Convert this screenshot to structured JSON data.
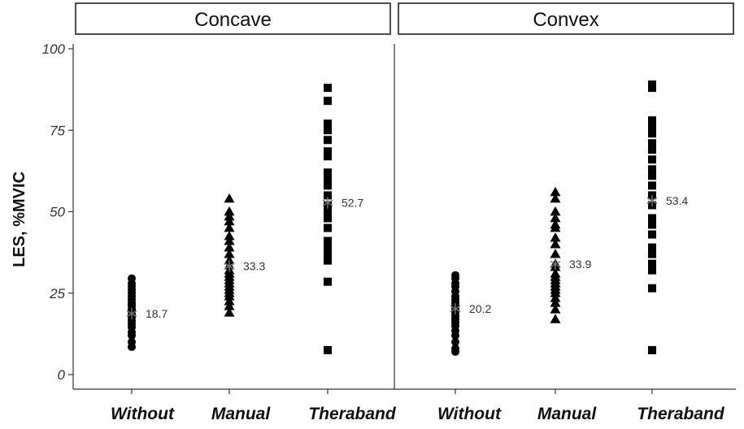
{
  "chart_data": {
    "type": "scatter",
    "ylabel": "LES, %MVIC",
    "ylim": [
      0,
      100
    ],
    "yticks": [
      0,
      25,
      50,
      75,
      100
    ],
    "categories": [
      "Without",
      "Manual",
      "Theraband"
    ],
    "grid": false,
    "panels": [
      {
        "name": "Concave",
        "groups": [
          {
            "category": "Without",
            "marker": "circle",
            "values": [
              8.5,
              10,
              12,
              13,
              14.5,
              15.5,
              16.5,
              17.5,
              18.5,
              19.5,
              20,
              21,
              21.5,
              22,
              23,
              24,
              25,
              26,
              27,
              28,
              29.5
            ],
            "mean": 18.7,
            "mean_label": "18.7"
          },
          {
            "category": "Manual",
            "marker": "triangle",
            "values": [
              19,
              21,
              22.5,
              24,
              25,
              26,
              27,
              28,
              29,
              30,
              31,
              32,
              33.5,
              35,
              37,
              39,
              41,
              42.5,
              45,
              47,
              48.5,
              50,
              54
            ],
            "mean": 33.3,
            "mean_label": "33.3"
          },
          {
            "category": "Theraband",
            "marker": "square",
            "values": [
              7.5,
              28.5,
              35,
              36.5,
              38,
              40,
              41,
              45,
              48,
              50,
              52,
              55,
              58,
              60,
              62,
              67,
              68.5,
              72,
              75,
              77,
              84,
              88
            ],
            "mean": 52.7,
            "mean_label": "52.7"
          }
        ]
      },
      {
        "name": "Convex",
        "groups": [
          {
            "category": "Without",
            "marker": "circle",
            "values": [
              7,
              8,
              10,
              12,
              13.5,
              15,
              16,
              17,
              18,
              19,
              20,
              21,
              22,
              23,
              24,
              25.5,
              27,
              28,
              29.5,
              30.5
            ],
            "mean": 20.2,
            "mean_label": "20.2"
          },
          {
            "category": "Manual",
            "marker": "triangle",
            "values": [
              17,
              20,
              22,
              23.5,
              25,
              26,
              27,
              28,
              29,
              30,
              31,
              33,
              34,
              37,
              40,
              42,
              45,
              46,
              48,
              50,
              54,
              56
            ],
            "mean": 33.9,
            "mean_label": "33.9"
          },
          {
            "category": "Theraband",
            "marker": "square",
            "values": [
              7.5,
              26.5,
              32,
              34,
              37,
              39,
              43,
              46,
              48,
              52,
              55,
              58,
              61,
              63,
              66,
              69,
              71,
              74,
              76,
              78,
              88,
              89
            ],
            "mean": 53.4,
            "mean_label": "53.4"
          }
        ]
      }
    ]
  }
}
